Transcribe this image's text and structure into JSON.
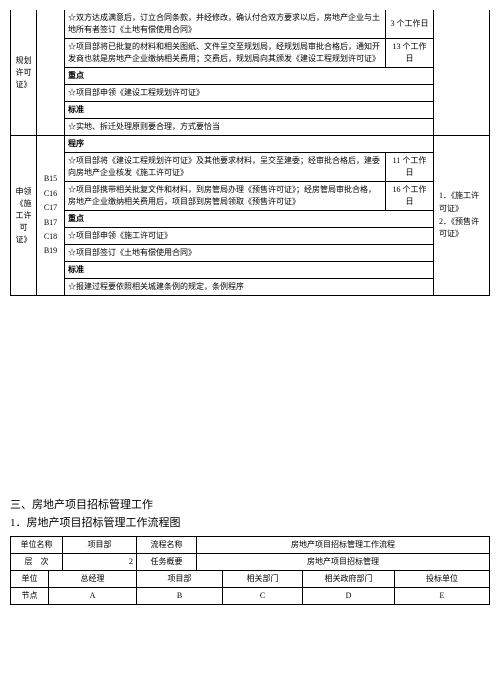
{
  "mainTable": {
    "col1": {
      "r1": "规划许可证》",
      "r2": "申领《施工许可证》"
    },
    "codes": {
      "block": "B15\nC16\nC17\nB17\nC18\nB19"
    },
    "rows": [
      {
        "text": "☆双方达成满意后，订立合同条款，并经修改，确认付合双方要求以后，房地产企业与土地所有者签订《土地有偿使用合同》",
        "days": "3 个工作日"
      },
      {
        "text": "☆项目部将已批复的材料和相关图纸、文件呈交至规划局，经规划局审批合格后，通知开发商也就是房地产企业缴纳相关费用；交费后，规划局向其颁发《建设工程规划许可证》",
        "days": "13 个工作日"
      },
      {
        "text": "重点",
        "bold": true
      },
      {
        "text": "☆项目部申领《建设工程规划许可证》"
      },
      {
        "text": "标准",
        "bold": true
      },
      {
        "text": "☆实地、拆迁处理原则要合理，方式要恰当"
      },
      {
        "text": "程序",
        "bold": true
      },
      {
        "text": "☆项目部将《建设工程规划许可证》及其他要求材料，呈交至建委；经审批合格后，建委向房地产企业核发《施工许可证》",
        "days": "11 个工作日"
      },
      {
        "text": "☆项目部携带相关批复文件和材料，到房管局办理《预售许可证》；经房管局审批合格，房地产企业缴纳相关费用后，项目部到房管局领取《预售许可证》",
        "days": "16 个工作日"
      },
      {
        "text": "重点",
        "bold": true
      },
      {
        "text": "☆项目部申领《施工许可证》"
      },
      {
        "text": "☆项目部签订《土地有偿使用合同》"
      },
      {
        "text": "标准",
        "bold": true
      },
      {
        "text": "☆报建过程要依照相关城建条例的规定，条例程序"
      }
    ],
    "rightList": [
      "1．《施工许可证》",
      "2．《预售许可证》"
    ]
  },
  "section3": {
    "title": "三、房地产项目招标管理工作",
    "sub": "1．房地产项目招标管理工作流程图"
  },
  "table2": {
    "r1c1": "单位名称",
    "r1c2": "项目部",
    "r1c3": "流程名称",
    "r1c4": "房地产项目招标管理工作流程",
    "r2c1": "层　次",
    "r2c2": "2",
    "r2c3": "任务概要",
    "r2c4": "房地产项目招标管理"
  },
  "table3": {
    "r1c1": "单位",
    "r1c2": "总经理",
    "r1c3": "项目部",
    "r1c4": "相关部门",
    "r1c5": "相关政府部门",
    "r1c6": "投标单位",
    "r2c1": "节点",
    "r2c2": "A",
    "r2c3": "B",
    "r2c4": "C",
    "r2c5": "D",
    "r2c6": "E"
  }
}
